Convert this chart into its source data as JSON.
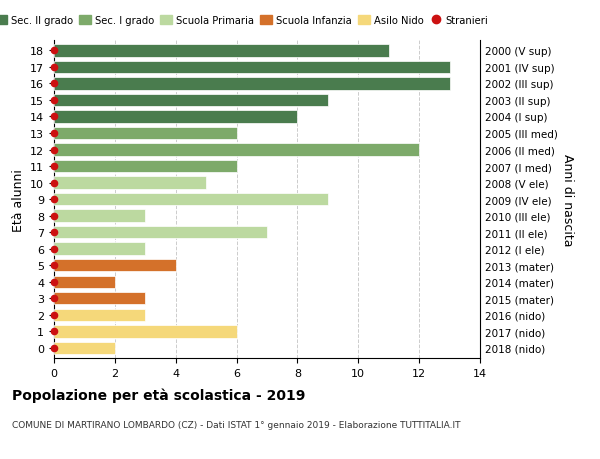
{
  "ages": [
    18,
    17,
    16,
    15,
    14,
    13,
    12,
    11,
    10,
    9,
    8,
    7,
    6,
    5,
    4,
    3,
    2,
    1,
    0
  ],
  "years": [
    "2000 (V sup)",
    "2001 (IV sup)",
    "2002 (III sup)",
    "2003 (II sup)",
    "2004 (I sup)",
    "2005 (III med)",
    "2006 (II med)",
    "2007 (I med)",
    "2008 (V ele)",
    "2009 (IV ele)",
    "2010 (III ele)",
    "2011 (II ele)",
    "2012 (I ele)",
    "2013 (mater)",
    "2014 (mater)",
    "2015 (mater)",
    "2016 (nido)",
    "2017 (nido)",
    "2018 (nido)"
  ],
  "values": [
    11,
    13,
    13,
    9,
    8,
    6,
    12,
    6,
    5,
    9,
    3,
    7,
    3,
    4,
    2,
    3,
    3,
    6,
    2
  ],
  "categories": [
    "Sec. II grado",
    "Sec. II grado",
    "Sec. II grado",
    "Sec. II grado",
    "Sec. II grado",
    "Sec. I grado",
    "Sec. I grado",
    "Sec. I grado",
    "Scuola Primaria",
    "Scuola Primaria",
    "Scuola Primaria",
    "Scuola Primaria",
    "Scuola Primaria",
    "Scuola Infanzia",
    "Scuola Infanzia",
    "Scuola Infanzia",
    "Asilo Nido",
    "Asilo Nido",
    "Asilo Nido"
  ],
  "colors": {
    "Sec. II grado": "#4a7c4e",
    "Sec. I grado": "#7daa6a",
    "Scuola Primaria": "#bcd9a0",
    "Scuola Infanzia": "#d4712a",
    "Asilo Nido": "#f5d87a"
  },
  "stranieri_color": "#cc1111",
  "xlim": [
    0,
    14
  ],
  "xticks": [
    0,
    2,
    4,
    6,
    8,
    10,
    12,
    14
  ],
  "ylabel_left": "Età alunni",
  "ylabel_right": "Anni di nascita",
  "title": "Popolazione per età scolastica - 2019",
  "subtitle": "COMUNE DI MARTIRANO LOMBARDO (CZ) - Dati ISTAT 1° gennaio 2019 - Elaborazione TUTTITALIA.IT",
  "legend_labels": [
    "Sec. II grado",
    "Sec. I grado",
    "Scuola Primaria",
    "Scuola Infanzia",
    "Asilo Nido",
    "Stranieri"
  ],
  "background_color": "#ffffff",
  "grid_color": "#cccccc",
  "bar_height": 0.75
}
